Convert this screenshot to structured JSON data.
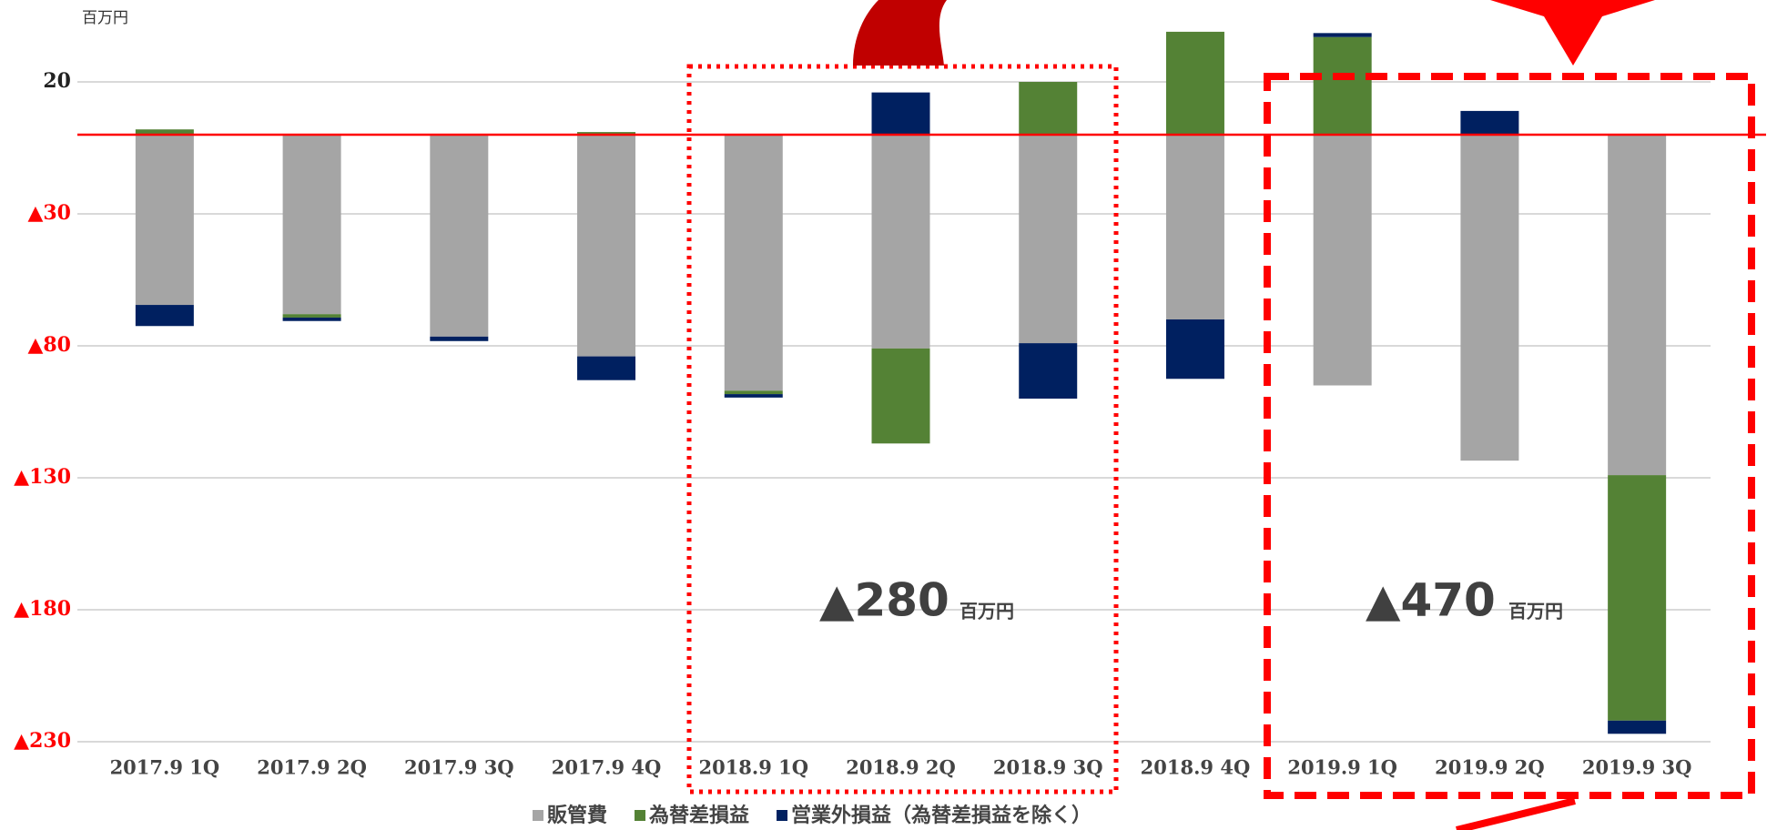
{
  "chart_data": {
    "type": "stacked_bar",
    "unit_label": "百万円",
    "categories": [
      "2017.9 1Q",
      "2017.9 2Q",
      "2017.9 3Q",
      "2017.9 4Q",
      "2018.9 1Q",
      "2018.9 2Q",
      "2018.9 3Q",
      "2018.9 4Q",
      "2019.9 1Q",
      "2019.9 2Q",
      "2019.9 3Q"
    ],
    "series": [
      {
        "name": "販管費",
        "color": "#a5a5a5",
        "values": [
          -64.5,
          -68,
          -76.5,
          -84,
          -97,
          -81,
          -79,
          -70,
          -95,
          -123.5,
          -129
        ]
      },
      {
        "name": "為替差損益",
        "color": "#548235",
        "values": [
          2,
          -1.3,
          0,
          1,
          -1.3,
          -36,
          20,
          39,
          37,
          0,
          -93
        ]
      },
      {
        "name": "営業外損益（為替差損益を除く）",
        "color": "#002060",
        "values": [
          -8,
          -1.3,
          -1.7,
          -9,
          -1.3,
          16,
          -21,
          -22.5,
          1.5,
          9,
          -5
        ]
      }
    ],
    "ylim": [
      -230,
      40
    ],
    "yticks": [
      20,
      {
        "value": -30,
        "label": "▲30"
      },
      {
        "value": -80,
        "label": "▲80"
      },
      {
        "value": -130,
        "label": "▲130"
      },
      {
        "value": -180,
        "label": "▲180"
      },
      {
        "value": -230,
        "label": "▲230"
      }
    ],
    "grid": true,
    "legend": "bottom",
    "annotations": [
      {
        "text": "▲280",
        "unit": "百万円"
      },
      {
        "text": "▲470",
        "unit": "百万円"
      }
    ]
  }
}
